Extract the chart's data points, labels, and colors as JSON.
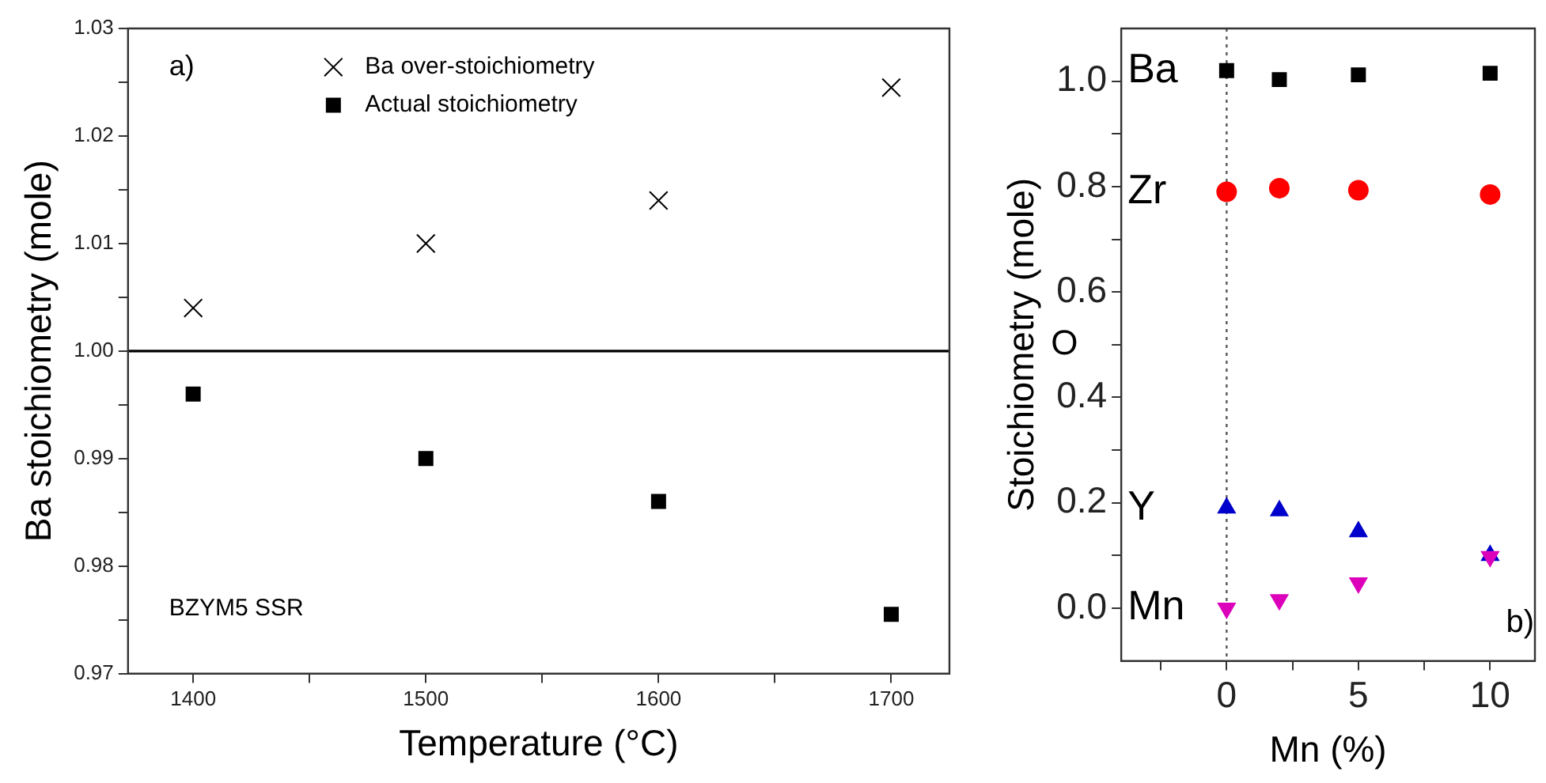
{
  "chart_data": [
    {
      "type": "scatter",
      "xlabel": "Temperature (°C)",
      "ylabel": "Ba stoichiometry (mole)",
      "xlim": [
        1372,
        1725
      ],
      "xticks": [
        1400,
        {
          "value": 1450,
          "label": null
        },
        1500,
        {
          "value": 1550,
          "label": null
        },
        1600,
        {
          "value": 1650,
          "label": null
        },
        1700
      ],
      "ylim": [
        0.97,
        1.03
      ],
      "yticks": [
        {
          "value": 0.97,
          "label": "0.97"
        },
        {
          "value": 0.975,
          "label": null
        },
        {
          "value": 0.98,
          "label": "0.98"
        },
        {
          "value": 0.985,
          "label": null
        },
        {
          "value": 0.99,
          "label": "0.99"
        },
        {
          "value": 0.995,
          "label": null
        },
        {
          "value": 1.0,
          "label": "1.00"
        },
        {
          "value": 1.005,
          "label": null
        },
        {
          "value": 1.01,
          "label": "1.01"
        },
        {
          "value": 1.015,
          "label": null
        },
        {
          "value": 1.02,
          "label": "1.02"
        },
        {
          "value": 1.025,
          "label": null
        },
        {
          "value": 1.03,
          "label": "1.03"
        }
      ],
      "x": [
        1400,
        1500,
        1600,
        1700
      ],
      "series": [
        {
          "name": "Ba over-stoichiometry",
          "color": "#000000",
          "marker": "cross",
          "values": [
            1.004,
            1.01,
            1.014,
            1.0245
          ]
        },
        {
          "name": "Actual stoichiometry",
          "color": "#000000",
          "marker": "square",
          "values": [
            0.996,
            0.99,
            0.986,
            0.9755
          ]
        }
      ],
      "ref_lines": [
        {
          "axis": "y",
          "value": 1.0,
          "color": "#000000",
          "line_style": "solid"
        }
      ],
      "annotations": [
        "a)",
        "BZYM5 SSR"
      ],
      "grid": false,
      "legend": "top left"
    },
    {
      "type": "scatter",
      "xlabel": "Mn (%)",
      "ylabel": "Stoichiometry (mole)",
      "xlim": [
        -4,
        11.7
      ],
      "xticks": [
        {
          "value": -2.5,
          "label": null
        },
        0,
        {
          "value": 2.5,
          "label": null
        },
        5,
        {
          "value": 7.5,
          "label": null
        },
        10
      ],
      "ylim": [
        -0.1,
        1.1
      ],
      "yticks": [
        {
          "value": 0,
          "label": "0.0"
        },
        {
          "value": 0.1,
          "label": null
        },
        {
          "value": 0.2,
          "label": "0.2"
        },
        {
          "value": 0.3,
          "label": null
        },
        {
          "value": 0.4,
          "label": "0.4"
        },
        {
          "value": 0.5,
          "label": null
        },
        {
          "value": 0.6,
          "label": "0.6"
        },
        {
          "value": 0.7,
          "label": null
        },
        {
          "value": 0.8,
          "label": "0.8"
        },
        {
          "value": 0.9,
          "label": null
        },
        {
          "value": 1.0,
          "label": "1.0"
        }
      ],
      "x": [
        0,
        2,
        5,
        10
      ],
      "series": [
        {
          "name": "Ba",
          "color": "#000000",
          "marker": "square",
          "values": [
            1.02,
            1.003,
            1.012,
            1.015
          ]
        },
        {
          "name": "Zr",
          "color": "#ff0000",
          "marker": "circle",
          "values": [
            0.79,
            0.797,
            0.793,
            0.785
          ]
        },
        {
          "name": "Y",
          "color": "#0000cc",
          "marker": "triangle",
          "values": [
            0.19,
            0.185,
            0.145,
            0.1
          ]
        },
        {
          "name": "Mn",
          "color": "#dd00bb",
          "marker": "triangle",
          "values": [
            0.0,
            0.016,
            0.048,
            0.098
          ]
        }
      ],
      "ref_lines": [
        {
          "axis": "x",
          "value": 0,
          "color": "#555555",
          "line_style": "dotted"
        }
      ],
      "annotations": [
        "b)",
        "O"
      ],
      "grid": false,
      "legend": false
    }
  ]
}
